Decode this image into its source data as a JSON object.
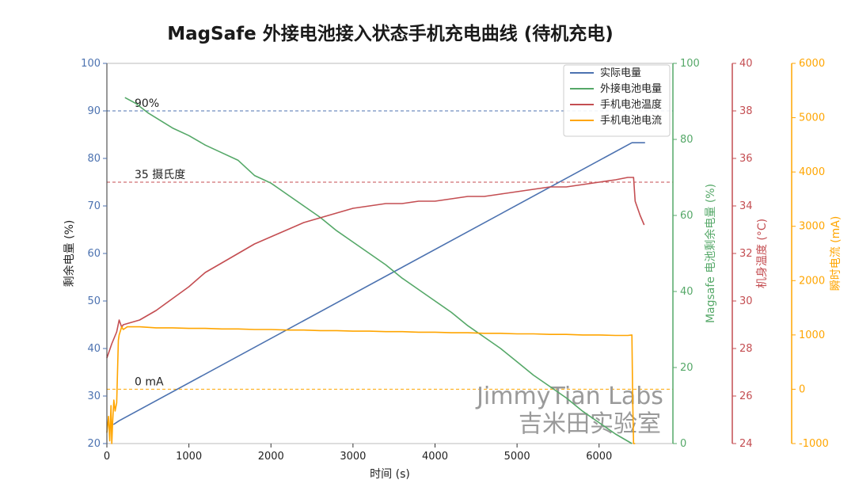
{
  "chart_data": {
    "type": "line",
    "title": "MagSafe 外接电池接入状态手机充电曲线 (待机充电)",
    "xlabel": "时间 (s)",
    "xlim": [
      0,
      6900
    ],
    "xticks": [
      0,
      1000,
      2000,
      3000,
      4000,
      5000,
      6000
    ],
    "axes": {
      "left": {
        "label": "剩余电量 (%)",
        "lim": [
          20,
          100
        ],
        "ticks": [
          20,
          30,
          40,
          50,
          60,
          70,
          80,
          90,
          100
        ],
        "color": "#4c72b0"
      },
      "right1": {
        "label": "Magsafe 电池剩余电量 (%)",
        "lim": [
          0,
          100
        ],
        "ticks": [
          0,
          20,
          40,
          60,
          80,
          100
        ],
        "color": "#55a868"
      },
      "right2": {
        "label": "机身温度 (°C)",
        "lim": [
          24,
          40
        ],
        "ticks": [
          24,
          26,
          28,
          30,
          32,
          34,
          36,
          38,
          40
        ],
        "color": "#c44e52"
      },
      "right3": {
        "label": "瞬时电流 (mA)",
        "lim": [
          -1000,
          6000
        ],
        "ticks": [
          -1000,
          0,
          1000,
          2000,
          3000,
          4000,
          5000,
          6000
        ],
        "color": "#ffa500"
      }
    },
    "reference_lines": [
      {
        "label": "90%",
        "axis": "left",
        "value": 90,
        "color": "#4c72b0"
      },
      {
        "label": "35 摄氏度",
        "axis": "right2",
        "value": 35,
        "color": "#c44e52"
      },
      {
        "label": "0 mA",
        "axis": "right3",
        "value": 0,
        "color": "#ffa500"
      }
    ],
    "legend": [
      "实际电量",
      "外接电池电量",
      "手机电池温度",
      "手机电池电流"
    ],
    "legend_position": "top-right",
    "series": [
      {
        "name": "实际电量",
        "axis": "left",
        "color": "#4c72b0",
        "x": [
          80,
          150,
          6400,
          6450,
          6560
        ],
        "y": [
          24,
          24.8,
          83.3,
          83.3,
          83.3
        ]
      },
      {
        "name": "外接电池电量",
        "axis": "right1",
        "color": "#55a868",
        "x": [
          220,
          350,
          500,
          800,
          1000,
          1200,
          1400,
          1600,
          1800,
          1900,
          2000,
          2100,
          2200,
          2400,
          2600,
          2800,
          3000,
          3200,
          3400,
          3600,
          3800,
          4000,
          4200,
          4400,
          4600,
          4800,
          5000,
          5200,
          5400,
          5600,
          5800,
          6000,
          6200,
          6400
        ],
        "y": [
          91,
          89.5,
          87,
          83,
          81,
          78.5,
          76.5,
          74.5,
          70.5,
          69.5,
          68.5,
          67,
          65.5,
          62.5,
          59.5,
          56,
          53,
          50,
          47,
          43.5,
          40.5,
          37.5,
          34.5,
          31,
          28,
          25,
          21.5,
          18,
          15,
          12,
          8.5,
          5.5,
          2.5,
          0
        ]
      },
      {
        "name": "手机电池温度",
        "axis": "right2",
        "color": "#c44e52",
        "x": [
          0,
          60,
          120,
          150,
          180,
          200,
          400,
          600,
          800,
          1000,
          1200,
          1400,
          1600,
          1800,
          2000,
          2200,
          2400,
          2600,
          2800,
          3000,
          3200,
          3400,
          3600,
          3800,
          4000,
          4200,
          4400,
          4600,
          4800,
          5000,
          5200,
          5400,
          5600,
          5800,
          6000,
          6200,
          6350,
          6420,
          6440,
          6500,
          6550
        ],
        "y": [
          27.6,
          28.2,
          28.7,
          29.2,
          28.9,
          29.0,
          29.2,
          29.6,
          30.1,
          30.6,
          31.2,
          31.6,
          32.0,
          32.4,
          32.7,
          33.0,
          33.3,
          33.5,
          33.7,
          33.9,
          34.0,
          34.1,
          34.1,
          34.2,
          34.2,
          34.3,
          34.4,
          34.4,
          34.5,
          34.6,
          34.7,
          34.8,
          34.8,
          34.9,
          35.0,
          35.1,
          35.2,
          35.2,
          34.2,
          33.6,
          33.2
        ]
      },
      {
        "name": "手机电池电流",
        "axis": "right3",
        "color": "#ffa500",
        "x": [
          0,
          20,
          35,
          50,
          60,
          70,
          85,
          100,
          120,
          140,
          150,
          160,
          180,
          200,
          250,
          300,
          400,
          600,
          800,
          1000,
          1200,
          1400,
          1600,
          1800,
          2000,
          2200,
          2400,
          2600,
          2800,
          3000,
          3200,
          3400,
          3600,
          3800,
          4000,
          4200,
          4400,
          4600,
          4800,
          5000,
          5200,
          5400,
          5600,
          5800,
          6000,
          6200,
          6350,
          6400,
          6410,
          6420,
          6440
        ],
        "y": [
          -800,
          -500,
          -950,
          -300,
          -1000,
          -600,
          -200,
          -400,
          -250,
          900,
          1000,
          1050,
          1150,
          1100,
          1150,
          1150,
          1150,
          1130,
          1130,
          1120,
          1120,
          1110,
          1110,
          1100,
          1100,
          1090,
          1090,
          1080,
          1080,
          1070,
          1070,
          1060,
          1060,
          1050,
          1050,
          1040,
          1040,
          1030,
          1030,
          1020,
          1020,
          1010,
          1010,
          1000,
          1000,
          990,
          990,
          1000,
          -200,
          -1000,
          -1000
        ]
      }
    ]
  },
  "watermark": {
    "line1": "JimmyTian Labs",
    "line2": "吉米田实验室"
  }
}
